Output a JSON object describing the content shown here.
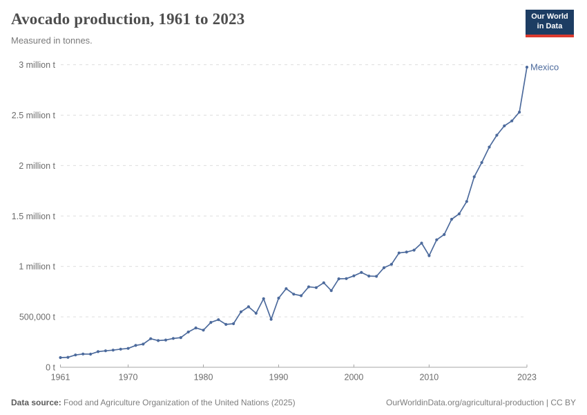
{
  "header": {
    "title": "Avocado production, 1961 to 2023",
    "subtitle": "Measured in tonnes.",
    "logo": {
      "line1": "Our World",
      "line2": "in Data",
      "bg_color": "#1d3d63",
      "accent_color": "#dc3a2f"
    }
  },
  "chart_data": {
    "type": "line",
    "title": "Avocado production, 1961 to 2023",
    "ylabel": "tonnes",
    "xlabel": "Year",
    "grid": "horizontal-dashed",
    "legend_position": "end-of-line-label",
    "xlim": [
      1961,
      2023
    ],
    "ylim": [
      0,
      3000000
    ],
    "x_ticks": [
      {
        "value": 1961,
        "label": "1961"
      },
      {
        "value": 1970,
        "label": "1970"
      },
      {
        "value": 1980,
        "label": "1980"
      },
      {
        "value": 1990,
        "label": "1990"
      },
      {
        "value": 2000,
        "label": "2000"
      },
      {
        "value": 2010,
        "label": "2010"
      },
      {
        "value": 2023,
        "label": "2023"
      }
    ],
    "y_ticks": [
      {
        "value": 0,
        "label": "0 t"
      },
      {
        "value": 500000,
        "label": "500,000 t"
      },
      {
        "value": 1000000,
        "label": "1 million t"
      },
      {
        "value": 1500000,
        "label": "1.5 million t"
      },
      {
        "value": 2000000,
        "label": "2 million t"
      },
      {
        "value": 2500000,
        "label": "2.5 million t"
      },
      {
        "value": 3000000,
        "label": "3 million t"
      }
    ],
    "end_label": "Mexico",
    "series": [
      {
        "name": "Mexico",
        "color": "#4c6a9c",
        "years": [
          1961,
          1962,
          1963,
          1964,
          1965,
          1966,
          1967,
          1968,
          1969,
          1970,
          1971,
          1972,
          1973,
          1974,
          1975,
          1976,
          1977,
          1978,
          1979,
          1980,
          1981,
          1982,
          1983,
          1984,
          1985,
          1986,
          1987,
          1988,
          1989,
          1990,
          1991,
          1992,
          1993,
          1994,
          1995,
          1996,
          1997,
          1998,
          1999,
          2000,
          2001,
          2002,
          2003,
          2004,
          2005,
          2006,
          2007,
          2008,
          2009,
          2010,
          2011,
          2012,
          2013,
          2014,
          2015,
          2016,
          2017,
          2018,
          2019,
          2020,
          2021,
          2022,
          2023
        ],
        "values": [
          96000,
          99000,
          122000,
          132000,
          130000,
          155000,
          163000,
          170000,
          180000,
          187000,
          217000,
          230000,
          283000,
          265000,
          270000,
          286000,
          294000,
          350000,
          390000,
          368000,
          445000,
          472000,
          425000,
          432000,
          550000,
          600000,
          536000,
          680000,
          475000,
          686000,
          780000,
          725000,
          710000,
          798000,
          790000,
          838000,
          760000,
          877000,
          879000,
          907000,
          940000,
          905000,
          902000,
          987000,
          1021000,
          1134000,
          1143000,
          1162000,
          1231000,
          1107000,
          1264000,
          1316000,
          1468000,
          1521000,
          1644000,
          1889000,
          2030000,
          2184000,
          2301000,
          2394000,
          2443000,
          2530000,
          2976000
        ]
      }
    ],
    "colors": {
      "gridline": "#dddddd",
      "axis": "#a5a5a5",
      "tick_label": "#6c6c6c",
      "series": "#4c6a9c"
    }
  },
  "footer": {
    "datasource_label": "Data source:",
    "datasource_text": " Food and Agriculture Organization of the United Nations (2025)",
    "link": "OurWorldinData.org/agricultural-production | CC BY"
  }
}
